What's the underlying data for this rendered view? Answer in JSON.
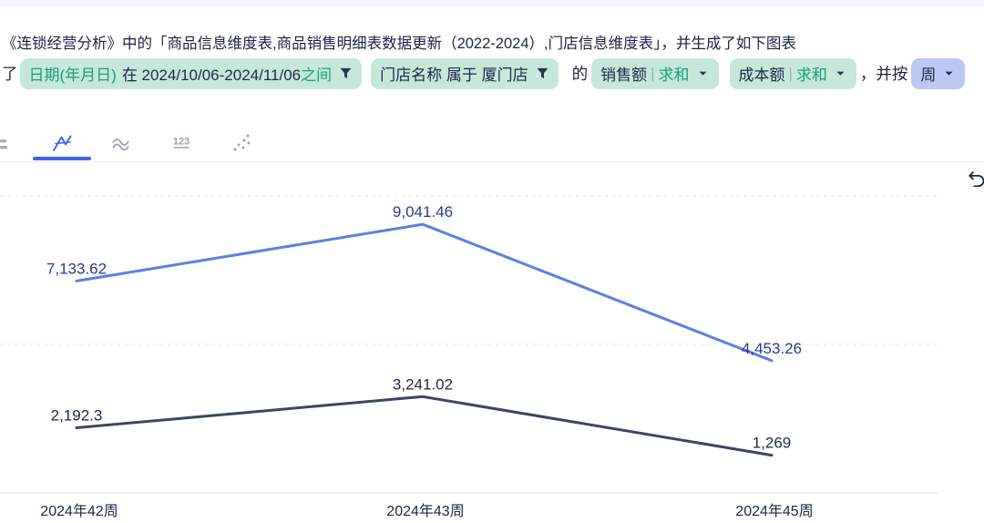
{
  "header": {
    "line1": "《连锁经营分析》中的「商品信息维度表,商品销售明细表数据更新（2022-2024）,门店信息维度表」，并生成了如下图表"
  },
  "filters": {
    "prefix": "了",
    "date": {
      "field": "日期(年月日)",
      "middle": "在 2024/10/06-2024/11/06",
      "suffix": "之间"
    },
    "store": {
      "label": "门店名称 属于 厦门店"
    },
    "connector": "的",
    "measures": [
      {
        "field": "销售额",
        "agg": "求和"
      },
      {
        "field": "成本额",
        "agg": "求和"
      }
    ],
    "groupby_prefix": "，并按",
    "groupby": "周"
  },
  "toolbar": {
    "tabs": [
      "bar-chart",
      "line-chart",
      "area-chart",
      "number-card",
      "scatter-chart"
    ],
    "selected": "line-chart",
    "number_icon_text": "123"
  },
  "chart_data": {
    "type": "line",
    "categories": [
      "2024年42周",
      "2024年43周",
      "2024年45周"
    ],
    "series": [
      {
        "name": "销售额|求和",
        "color": "#5f7ede",
        "label_color": "#2a3a8c",
        "values": [
          7133.62,
          9041.46,
          4453.26
        ],
        "labels": [
          "7,133.62",
          "9,041.46",
          "4,453.26"
        ]
      },
      {
        "name": "成本额|求和",
        "color": "#3c465f",
        "label_color": "#1e2844",
        "values": [
          2192.3,
          3241.02,
          1269
        ],
        "labels": [
          "2,192.3",
          "3,241.02",
          "1,269"
        ]
      }
    ],
    "ylim": [
      0,
      10000
    ],
    "gridline_values": [
      5000,
      10000
    ],
    "grid_style": "dashed horizontal",
    "legend": "none",
    "title": ""
  }
}
